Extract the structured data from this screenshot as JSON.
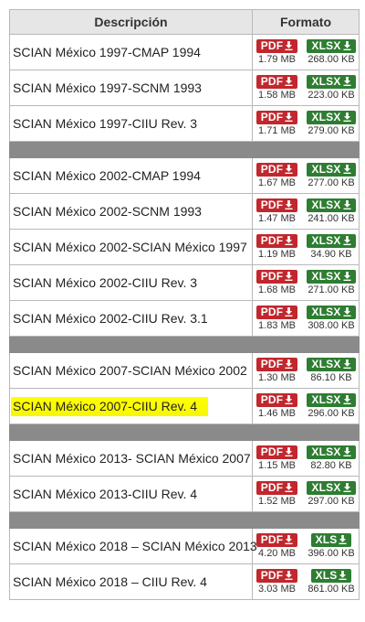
{
  "header": {
    "description": "Descripción",
    "format": "Formato"
  },
  "rows": [
    {
      "label": "SCIAN México 1997-CMAP 1994",
      "pdf": "PDF",
      "pdf_size": "1.79 MB",
      "xls": "XLSX",
      "xls_size": "268.00 KB"
    },
    {
      "label": "SCIAN México 1997-SCNM 1993",
      "pdf": "PDF",
      "pdf_size": "1.58 MB",
      "xls": "XLSX",
      "xls_size": "223.00 KB"
    },
    {
      "label": "SCIAN México 1997-CIIU Rev. 3",
      "pdf": "PDF",
      "pdf_size": "1.71 MB",
      "xls": "XLSX",
      "xls_size": "279.00 KB"
    },
    {
      "label": "SCIAN México 2002-CMAP 1994",
      "pdf": "PDF",
      "pdf_size": "1.67 MB",
      "xls": "XLSX",
      "xls_size": "277.00 KB"
    },
    {
      "label": "SCIAN México 2002-SCNM 1993",
      "pdf": "PDF",
      "pdf_size": "1.47 MB",
      "xls": "XLSX",
      "xls_size": "241.00 KB"
    },
    {
      "label": "SCIAN México 2002-SCIAN México 1997",
      "pdf": "PDF",
      "pdf_size": "1.19 MB",
      "xls": "XLSX",
      "xls_size": "34.90 KB"
    },
    {
      "label": "SCIAN México 2002-CIIU Rev. 3",
      "pdf": "PDF",
      "pdf_size": "1.68 MB",
      "xls": "XLSX",
      "xls_size": "271.00 KB"
    },
    {
      "label": "SCIAN México 2002-CIIU Rev. 3.1",
      "pdf": "PDF",
      "pdf_size": "1.83 MB",
      "xls": "XLSX",
      "xls_size": "308.00 KB"
    },
    {
      "label": "SCIAN México 2007-SCIAN México 2002",
      "pdf": "PDF",
      "pdf_size": "1.30 MB",
      "xls": "XLSX",
      "xls_size": "86.10 KB"
    },
    {
      "label": "SCIAN México 2007-CIIU Rev. 4",
      "pdf": "PDF",
      "pdf_size": "1.46 MB",
      "xls": "XLSX",
      "xls_size": "296.00 KB",
      "highlighted": true
    },
    {
      "label": "SCIAN México 2013- SCIAN México 2007",
      "pdf": "PDF",
      "pdf_size": "1.15 MB",
      "xls": "XLSX",
      "xls_size": "82.80 KB"
    },
    {
      "label": "SCIAN México 2013-CIIU Rev. 4",
      "pdf": "PDF",
      "pdf_size": "1.52 MB",
      "xls": "XLSX",
      "xls_size": "297.00 KB"
    },
    {
      "label": "SCIAN México 2018 – SCIAN México 2013",
      "pdf": "PDF",
      "pdf_size": "4.20 MB",
      "xls": "XLS",
      "xls_size": "396.00 KB"
    },
    {
      "label": "SCIAN México 2018 – CIIU Rev. 4",
      "pdf": "PDF",
      "pdf_size": "3.03 MB",
      "xls": "XLS",
      "xls_size": "861.00 KB"
    }
  ],
  "groups": [
    [
      0,
      1,
      2
    ],
    [
      3,
      4,
      5,
      6,
      7
    ],
    [
      8,
      9
    ],
    [
      10,
      11
    ],
    [
      12,
      13
    ]
  ],
  "icons": {
    "download": "download-arrow-icon"
  },
  "colors": {
    "pdf": "#c1272d",
    "xlsx": "#2e7d32",
    "separator": "#8a8a8a",
    "highlight": "#ffff00"
  }
}
